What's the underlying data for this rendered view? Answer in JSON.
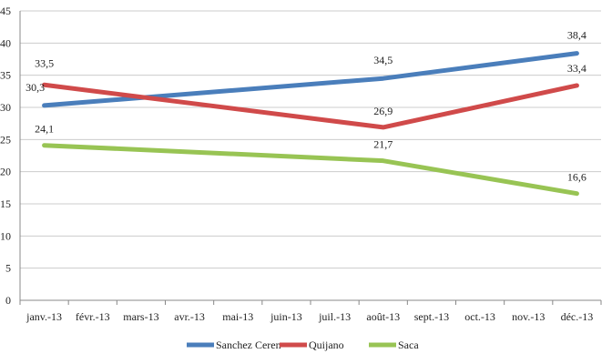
{
  "chart_data": {
    "type": "line",
    "title": "",
    "xlabel": "",
    "ylabel": "",
    "categories": [
      "janv.-13",
      "févr.-13",
      "mars-13",
      "avr.-13",
      "mai-13",
      "juin-13",
      "juil.-13",
      "août-13",
      "sept.-13",
      "oct.-13",
      "nov.-13",
      "déc.-13"
    ],
    "ylim": [
      0,
      45
    ],
    "yticks": [
      0,
      5,
      10,
      15,
      20,
      25,
      30,
      35,
      40,
      45
    ],
    "ytick_labels": [
      "0",
      "5",
      "10",
      "15",
      "20",
      "25",
      "30",
      "35",
      "40",
      "45"
    ],
    "grid": "horizontal",
    "legend_position": "bottom",
    "series": [
      {
        "name": "Sanchez Ceren",
        "color": "#4a7ebb",
        "points": [
          {
            "category": "janv.-13",
            "value": 30.3,
            "label": "30,3"
          },
          {
            "category": "août-13",
            "value": 34.5,
            "label": "34,5"
          },
          {
            "category": "déc.-13",
            "value": 38.4,
            "label": "38,4"
          }
        ]
      },
      {
        "name": "Quijano",
        "color": "#d04a4a",
        "points": [
          {
            "category": "janv.-13",
            "value": 33.5,
            "label": "33,5"
          },
          {
            "category": "août-13",
            "value": 26.9,
            "label": "26,9"
          },
          {
            "category": "déc.-13",
            "value": 33.4,
            "label": "33,4"
          }
        ]
      },
      {
        "name": "Saca",
        "color": "#98c454",
        "points": [
          {
            "category": "janv.-13",
            "value": 24.1,
            "label": "24,1"
          },
          {
            "category": "août-13",
            "value": 21.7,
            "label": "21,7"
          },
          {
            "category": "déc.-13",
            "value": 16.6,
            "label": "16,6"
          }
        ]
      }
    ]
  }
}
